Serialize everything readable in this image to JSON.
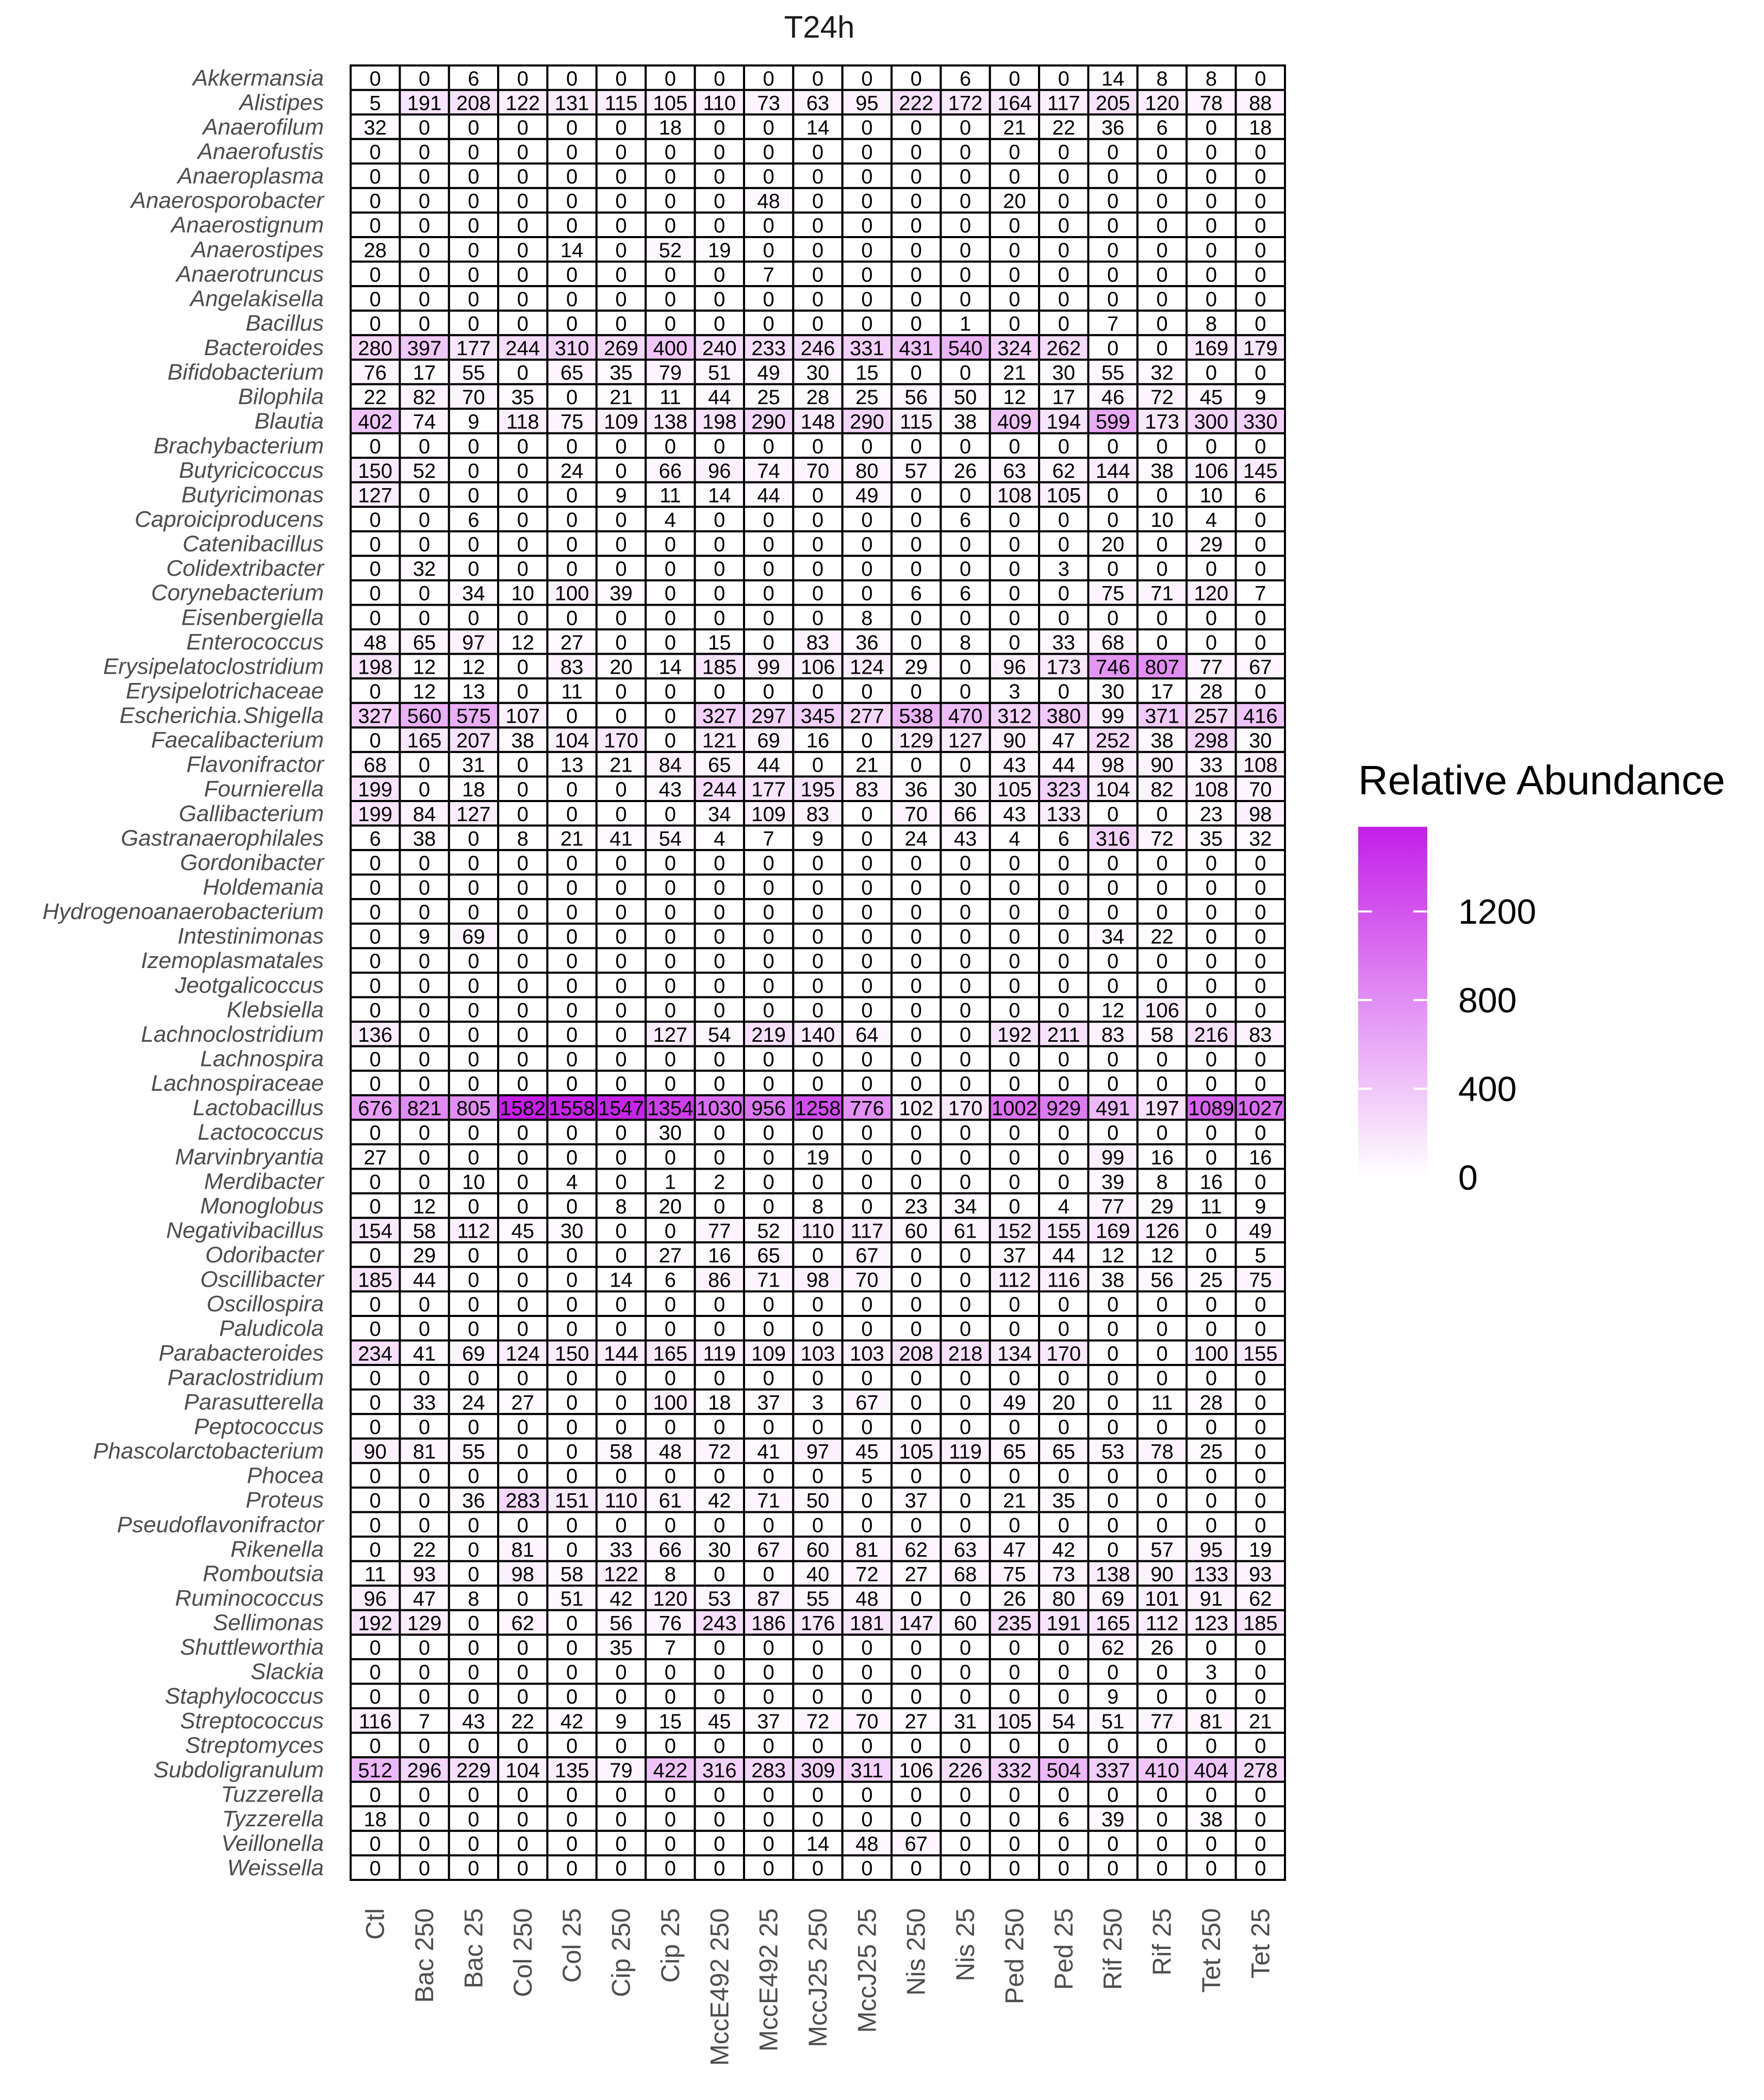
{
  "chart_data": {
    "type": "heatmap",
    "title": "T24h",
    "legend_title": "Relative Abundance",
    "legend_ticks": [
      "0",
      "400",
      "800",
      "1200"
    ],
    "legend_tick_values": [
      0,
      400,
      800,
      1200
    ],
    "value_range": [
      0,
      1582
    ],
    "colors": {
      "low": "#ffffff",
      "high": "#c41fe8",
      "grid": "#000000",
      "text": "#000000",
      "label": "#4d4d4d"
    },
    "columns": [
      "Ctl",
      "Bac 250",
      "Bac 25",
      "Col 250",
      "Col 25",
      "Cip 250",
      "Cip 25",
      "MccE492 250",
      "MccE492 25",
      "MccJ25 250",
      "MccJ25 25",
      "Nis 250",
      "Nis 25",
      "Ped 250",
      "Ped 25",
      "Rif 250",
      "Rif 25",
      "Tet 250",
      "Tet 25"
    ],
    "rows": [
      "Akkermansia",
      "Alistipes",
      "Anaerofilum",
      "Anaerofustis",
      "Anaeroplasma",
      "Anaerosporobacter",
      "Anaerostignum",
      "Anaerostipes",
      "Anaerotruncus",
      "Angelakisella",
      "Bacillus",
      "Bacteroides",
      "Bifidobacterium",
      "Bilophila",
      "Blautia",
      "Brachybacterium",
      "Butyricicoccus",
      "Butyricimonas",
      "Caproiciproducens",
      "Catenibacillus",
      "Colidextribacter",
      "Corynebacterium",
      "Eisenbergiella",
      "Enterococcus",
      "Erysipelatoclostridium",
      "Erysipelotrichaceae",
      "Escherichia.Shigella",
      "Faecalibacterium",
      "Flavonifractor",
      "Fournierella",
      "Gallibacterium",
      "Gastranaerophilales",
      "Gordonibacter",
      "Holdemania",
      "Hydrogenoanaerobacterium",
      "Intestinimonas",
      "Izemoplasmatales",
      "Jeotgalicoccus",
      "Klebsiella",
      "Lachnoclostridium",
      "Lachnospira",
      "Lachnospiraceae",
      "Lactobacillus",
      "Lactococcus",
      "Marvinbryantia",
      "Merdibacter",
      "Monoglobus",
      "Negativibacillus",
      "Odoribacter",
      "Oscillibacter",
      "Oscillospira",
      "Paludicola",
      "Parabacteroides",
      "Paraclostridium",
      "Parasutterella",
      "Peptococcus",
      "Phascolarctobacterium",
      "Phocea",
      "Proteus",
      "Pseudoflavonifractor",
      "Rikenella",
      "Romboutsia",
      "Ruminococcus",
      "Sellimonas",
      "Shuttleworthia",
      "Slackia",
      "Staphylococcus",
      "Streptococcus",
      "Streptomyces",
      "Subdoligranulum",
      "Tuzzerella",
      "Tyzzerella",
      "Veillonella",
      "Weissella"
    ],
    "values": [
      [
        0,
        0,
        6,
        0,
        0,
        0,
        0,
        0,
        0,
        0,
        0,
        0,
        6,
        0,
        0,
        14,
        8,
        8,
        0
      ],
      [
        5,
        191,
        208,
        122,
        131,
        115,
        105,
        110,
        73,
        63,
        95,
        222,
        172,
        164,
        117,
        205,
        120,
        78,
        88
      ],
      [
        32,
        0,
        0,
        0,
        0,
        0,
        18,
        0,
        0,
        14,
        0,
        0,
        0,
        21,
        22,
        36,
        6,
        0,
        18
      ],
      [
        0,
        0,
        0,
        0,
        0,
        0,
        0,
        0,
        0,
        0,
        0,
        0,
        0,
        0,
        0,
        0,
        0,
        0,
        0
      ],
      [
        0,
        0,
        0,
        0,
        0,
        0,
        0,
        0,
        0,
        0,
        0,
        0,
        0,
        0,
        0,
        0,
        0,
        0,
        0
      ],
      [
        0,
        0,
        0,
        0,
        0,
        0,
        0,
        0,
        48,
        0,
        0,
        0,
        0,
        20,
        0,
        0,
        0,
        0,
        0
      ],
      [
        0,
        0,
        0,
        0,
        0,
        0,
        0,
        0,
        0,
        0,
        0,
        0,
        0,
        0,
        0,
        0,
        0,
        0,
        0
      ],
      [
        28,
        0,
        0,
        0,
        14,
        0,
        52,
        19,
        0,
        0,
        0,
        0,
        0,
        0,
        0,
        0,
        0,
        0,
        0
      ],
      [
        0,
        0,
        0,
        0,
        0,
        0,
        0,
        0,
        7,
        0,
        0,
        0,
        0,
        0,
        0,
        0,
        0,
        0,
        0
      ],
      [
        0,
        0,
        0,
        0,
        0,
        0,
        0,
        0,
        0,
        0,
        0,
        0,
        0,
        0,
        0,
        0,
        0,
        0,
        0
      ],
      [
        0,
        0,
        0,
        0,
        0,
        0,
        0,
        0,
        0,
        0,
        0,
        0,
        1,
        0,
        0,
        7,
        0,
        8,
        0
      ],
      [
        280,
        397,
        177,
        244,
        310,
        269,
        400,
        240,
        233,
        246,
        331,
        431,
        540,
        324,
        262,
        0,
        0,
        169,
        179
      ],
      [
        76,
        17,
        55,
        0,
        65,
        35,
        79,
        51,
        49,
        30,
        15,
        0,
        0,
        21,
        30,
        55,
        32,
        0,
        0
      ],
      [
        22,
        82,
        70,
        35,
        0,
        21,
        11,
        44,
        25,
        28,
        25,
        56,
        50,
        12,
        17,
        46,
        72,
        45,
        9
      ],
      [
        402,
        74,
        9,
        118,
        75,
        109,
        138,
        198,
        290,
        148,
        290,
        115,
        38,
        409,
        194,
        599,
        173,
        300,
        330
      ],
      [
        0,
        0,
        0,
        0,
        0,
        0,
        0,
        0,
        0,
        0,
        0,
        0,
        0,
        0,
        0,
        0,
        0,
        0,
        0
      ],
      [
        150,
        52,
        0,
        0,
        24,
        0,
        66,
        96,
        74,
        70,
        80,
        57,
        26,
        63,
        62,
        144,
        38,
        106,
        145
      ],
      [
        127,
        0,
        0,
        0,
        0,
        9,
        11,
        14,
        44,
        0,
        49,
        0,
        0,
        108,
        105,
        0,
        0,
        10,
        6
      ],
      [
        0,
        0,
        6,
        0,
        0,
        0,
        4,
        0,
        0,
        0,
        0,
        0,
        6,
        0,
        0,
        0,
        10,
        4,
        0
      ],
      [
        0,
        0,
        0,
        0,
        0,
        0,
        0,
        0,
        0,
        0,
        0,
        0,
        0,
        0,
        0,
        20,
        0,
        29,
        0
      ],
      [
        0,
        32,
        0,
        0,
        0,
        0,
        0,
        0,
        0,
        0,
        0,
        0,
        0,
        0,
        3,
        0,
        0,
        0,
        0
      ],
      [
        0,
        0,
        34,
        10,
        100,
        39,
        0,
        0,
        0,
        0,
        0,
        6,
        6,
        0,
        0,
        75,
        71,
        120,
        7
      ],
      [
        0,
        0,
        0,
        0,
        0,
        0,
        0,
        0,
        0,
        0,
        8,
        0,
        0,
        0,
        0,
        0,
        0,
        0,
        0
      ],
      [
        48,
        65,
        97,
        12,
        27,
        0,
        0,
        15,
        0,
        83,
        36,
        0,
        8,
        0,
        33,
        68,
        0,
        0,
        0
      ],
      [
        198,
        12,
        12,
        0,
        83,
        20,
        14,
        185,
        99,
        106,
        124,
        29,
        0,
        96,
        173,
        746,
        807,
        77,
        67
      ],
      [
        0,
        12,
        13,
        0,
        11,
        0,
        0,
        0,
        0,
        0,
        0,
        0,
        0,
        3,
        0,
        30,
        17,
        28,
        0
      ],
      [
        327,
        560,
        575,
        107,
        0,
        0,
        0,
        327,
        297,
        345,
        277,
        538,
        470,
        312,
        380,
        99,
        371,
        257,
        416
      ],
      [
        0,
        165,
        207,
        38,
        104,
        170,
        0,
        121,
        69,
        16,
        0,
        129,
        127,
        90,
        47,
        252,
        38,
        298,
        30
      ],
      [
        68,
        0,
        31,
        0,
        13,
        21,
        84,
        65,
        44,
        0,
        21,
        0,
        0,
        43,
        44,
        98,
        90,
        33,
        108
      ],
      [
        199,
        0,
        18,
        0,
        0,
        0,
        43,
        244,
        177,
        195,
        83,
        36,
        30,
        105,
        323,
        104,
        82,
        108,
        70
      ],
      [
        199,
        84,
        127,
        0,
        0,
        0,
        0,
        34,
        109,
        83,
        0,
        70,
        66,
        43,
        133,
        0,
        0,
        23,
        98
      ],
      [
        6,
        38,
        0,
        8,
        21,
        41,
        54,
        4,
        7,
        9,
        0,
        24,
        43,
        4,
        6,
        316,
        72,
        35,
        32
      ],
      [
        0,
        0,
        0,
        0,
        0,
        0,
        0,
        0,
        0,
        0,
        0,
        0,
        0,
        0,
        0,
        0,
        0,
        0,
        0
      ],
      [
        0,
        0,
        0,
        0,
        0,
        0,
        0,
        0,
        0,
        0,
        0,
        0,
        0,
        0,
        0,
        0,
        0,
        0,
        0
      ],
      [
        0,
        0,
        0,
        0,
        0,
        0,
        0,
        0,
        0,
        0,
        0,
        0,
        0,
        0,
        0,
        0,
        0,
        0,
        0
      ],
      [
        0,
        9,
        69,
        0,
        0,
        0,
        0,
        0,
        0,
        0,
        0,
        0,
        0,
        0,
        0,
        34,
        22,
        0,
        0
      ],
      [
        0,
        0,
        0,
        0,
        0,
        0,
        0,
        0,
        0,
        0,
        0,
        0,
        0,
        0,
        0,
        0,
        0,
        0,
        0
      ],
      [
        0,
        0,
        0,
        0,
        0,
        0,
        0,
        0,
        0,
        0,
        0,
        0,
        0,
        0,
        0,
        0,
        0,
        0,
        0
      ],
      [
        0,
        0,
        0,
        0,
        0,
        0,
        0,
        0,
        0,
        0,
        0,
        0,
        0,
        0,
        0,
        12,
        106,
        0,
        0
      ],
      [
        136,
        0,
        0,
        0,
        0,
        0,
        127,
        54,
        219,
        140,
        64,
        0,
        0,
        192,
        211,
        83,
        58,
        216,
        83
      ],
      [
        0,
        0,
        0,
        0,
        0,
        0,
        0,
        0,
        0,
        0,
        0,
        0,
        0,
        0,
        0,
        0,
        0,
        0,
        0
      ],
      [
        0,
        0,
        0,
        0,
        0,
        0,
        0,
        0,
        0,
        0,
        0,
        0,
        0,
        0,
        0,
        0,
        0,
        0,
        0
      ],
      [
        676,
        821,
        805,
        1582,
        1558,
        1547,
        1354,
        1030,
        956,
        1258,
        776,
        102,
        170,
        1002,
        929,
        491,
        197,
        1089,
        1027
      ],
      [
        0,
        0,
        0,
        0,
        0,
        0,
        30,
        0,
        0,
        0,
        0,
        0,
        0,
        0,
        0,
        0,
        0,
        0,
        0
      ],
      [
        27,
        0,
        0,
        0,
        0,
        0,
        0,
        0,
        0,
        19,
        0,
        0,
        0,
        0,
        0,
        99,
        16,
        0,
        16
      ],
      [
        0,
        0,
        10,
        0,
        4,
        0,
        1,
        2,
        0,
        0,
        0,
        0,
        0,
        0,
        0,
        39,
        8,
        16,
        0
      ],
      [
        0,
        12,
        0,
        0,
        0,
        8,
        20,
        0,
        0,
        8,
        0,
        23,
        34,
        0,
        4,
        77,
        29,
        11,
        9
      ],
      [
        154,
        58,
        112,
        45,
        30,
        0,
        0,
        77,
        52,
        110,
        117,
        60,
        61,
        152,
        155,
        169,
        126,
        0,
        49
      ],
      [
        0,
        29,
        0,
        0,
        0,
        0,
        27,
        16,
        65,
        0,
        67,
        0,
        0,
        37,
        44,
        12,
        12,
        0,
        5
      ],
      [
        185,
        44,
        0,
        0,
        0,
        14,
        6,
        86,
        71,
        98,
        70,
        0,
        0,
        112,
        116,
        38,
        56,
        25,
        75
      ],
      [
        0,
        0,
        0,
        0,
        0,
        0,
        0,
        0,
        0,
        0,
        0,
        0,
        0,
        0,
        0,
        0,
        0,
        0,
        0
      ],
      [
        0,
        0,
        0,
        0,
        0,
        0,
        0,
        0,
        0,
        0,
        0,
        0,
        0,
        0,
        0,
        0,
        0,
        0,
        0
      ],
      [
        234,
        41,
        69,
        124,
        150,
        144,
        165,
        119,
        109,
        103,
        103,
        208,
        218,
        134,
        170,
        0,
        0,
        100,
        155
      ],
      [
        0,
        0,
        0,
        0,
        0,
        0,
        0,
        0,
        0,
        0,
        0,
        0,
        0,
        0,
        0,
        0,
        0,
        0,
        0
      ],
      [
        0,
        33,
        24,
        27,
        0,
        0,
        100,
        18,
        37,
        3,
        67,
        0,
        0,
        49,
        20,
        0,
        11,
        28,
        0
      ],
      [
        0,
        0,
        0,
        0,
        0,
        0,
        0,
        0,
        0,
        0,
        0,
        0,
        0,
        0,
        0,
        0,
        0,
        0,
        0
      ],
      [
        90,
        81,
        55,
        0,
        0,
        58,
        48,
        72,
        41,
        97,
        45,
        105,
        119,
        65,
        65,
        53,
        78,
        25,
        0
      ],
      [
        0,
        0,
        0,
        0,
        0,
        0,
        0,
        0,
        0,
        0,
        5,
        0,
        0,
        0,
        0,
        0,
        0,
        0,
        0
      ],
      [
        0,
        0,
        36,
        283,
        151,
        110,
        61,
        42,
        71,
        50,
        0,
        37,
        0,
        21,
        35,
        0,
        0,
        0,
        0
      ],
      [
        0,
        0,
        0,
        0,
        0,
        0,
        0,
        0,
        0,
        0,
        0,
        0,
        0,
        0,
        0,
        0,
        0,
        0,
        0
      ],
      [
        0,
        22,
        0,
        81,
        0,
        33,
        66,
        30,
        67,
        60,
        81,
        62,
        63,
        47,
        42,
        0,
        57,
        95,
        19
      ],
      [
        11,
        93,
        0,
        98,
        58,
        122,
        8,
        0,
        0,
        40,
        72,
        27,
        68,
        75,
        73,
        138,
        90,
        133,
        93
      ],
      [
        96,
        47,
        8,
        0,
        51,
        42,
        120,
        53,
        87,
        55,
        48,
        0,
        0,
        26,
        80,
        69,
        101,
        91,
        62
      ],
      [
        192,
        129,
        0,
        62,
        0,
        56,
        76,
        243,
        186,
        176,
        181,
        147,
        60,
        235,
        191,
        165,
        112,
        123,
        185
      ],
      [
        0,
        0,
        0,
        0,
        0,
        35,
        7,
        0,
        0,
        0,
        0,
        0,
        0,
        0,
        0,
        62,
        26,
        0,
        0
      ],
      [
        0,
        0,
        0,
        0,
        0,
        0,
        0,
        0,
        0,
        0,
        0,
        0,
        0,
        0,
        0,
        0,
        0,
        3,
        0
      ],
      [
        0,
        0,
        0,
        0,
        0,
        0,
        0,
        0,
        0,
        0,
        0,
        0,
        0,
        0,
        0,
        9,
        0,
        0,
        0
      ],
      [
        116,
        7,
        43,
        22,
        42,
        9,
        15,
        45,
        37,
        72,
        70,
        27,
        31,
        105,
        54,
        51,
        77,
        81,
        21
      ],
      [
        0,
        0,
        0,
        0,
        0,
        0,
        0,
        0,
        0,
        0,
        0,
        0,
        0,
        0,
        0,
        0,
        0,
        0,
        0
      ],
      [
        512,
        296,
        229,
        104,
        135,
        79,
        422,
        316,
        283,
        309,
        311,
        106,
        226,
        332,
        504,
        337,
        410,
        404,
        278
      ],
      [
        0,
        0,
        0,
        0,
        0,
        0,
        0,
        0,
        0,
        0,
        0,
        0,
        0,
        0,
        0,
        0,
        0,
        0,
        0
      ],
      [
        18,
        0,
        0,
        0,
        0,
        0,
        0,
        0,
        0,
        0,
        0,
        0,
        0,
        0,
        6,
        39,
        0,
        38,
        0
      ],
      [
        0,
        0,
        0,
        0,
        0,
        0,
        0,
        0,
        0,
        14,
        48,
        67,
        0,
        0,
        0,
        0,
        0,
        0,
        0
      ],
      [
        0,
        0,
        0,
        0,
        0,
        0,
        0,
        0,
        0,
        0,
        0,
        0,
        0,
        0,
        0,
        0,
        0,
        0,
        0
      ]
    ]
  }
}
